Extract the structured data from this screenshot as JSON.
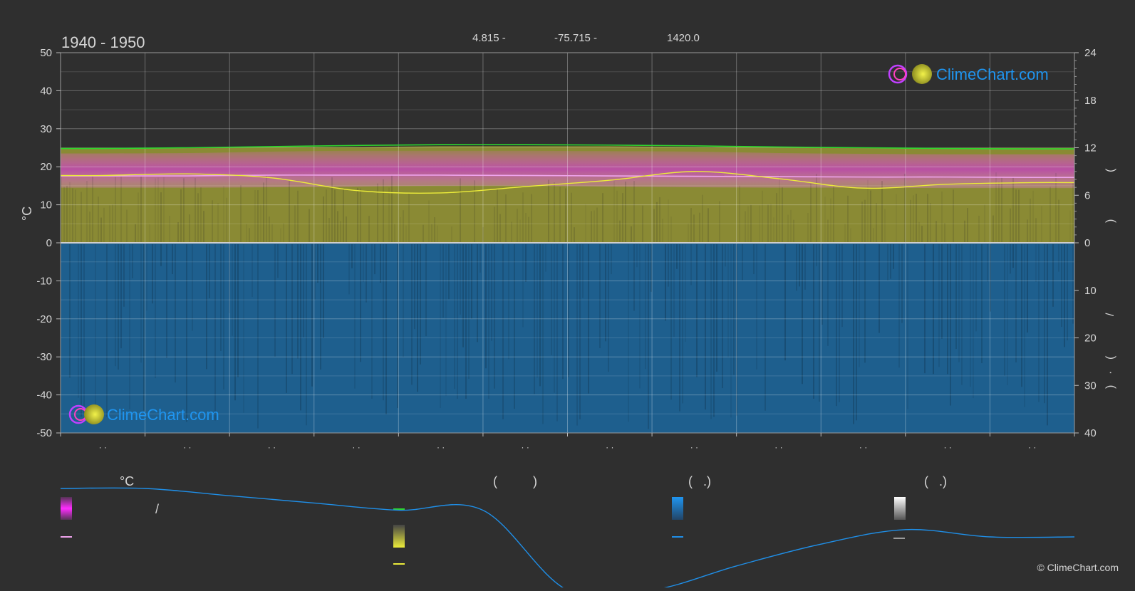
{
  "header": {
    "period": "1940 - 1950",
    "latitude": "4.815 -",
    "longitude": "-75.715 -",
    "elevation": "1420.0"
  },
  "brand": {
    "logo_text": "ClimeChart.com",
    "copyright": "© ClimeChart.com"
  },
  "colors": {
    "background": "#2f2f2f",
    "max_temp": "#2ed82e",
    "mean_temp": "#f0a4ee",
    "sunshine_line": "#ecec3a",
    "temp_band": "#c83cc8",
    "daylight_fill": "#8a8a34",
    "rain_fill": "#1e5f8e",
    "rain_line": "#1f8fe8",
    "logo_blue": "#1f95f0"
  },
  "chart_data": {
    "type": "area",
    "title": "1940 - 1950",
    "ylabel_left": "°C",
    "yticks_left": [
      "50",
      "40",
      "30",
      "20",
      "10",
      "0",
      "-10",
      "-20",
      "-30",
      "-40",
      "-50"
    ],
    "ylim_left": [
      -50,
      50
    ],
    "yticks_right_top": [
      "24",
      "18",
      "12",
      "6",
      "0"
    ],
    "ylim_right_top": [
      0,
      24
    ],
    "yticks_right_bottom": [
      "10",
      "20",
      "30",
      "40"
    ],
    "ylim_right_bottom": [
      0,
      40
    ],
    "right_axis_glyphs": [
      "(",
      ")",
      "/",
      "(",
      "·",
      ")"
    ],
    "x_tick_glyphs": [
      "· ·",
      "· ·",
      "· ·",
      "· ·",
      "· ·",
      "· ·",
      "· ·",
      "· ·",
      "· ·",
      "· ·",
      "· ·",
      "· ·"
    ],
    "x": [
      0,
      1,
      2,
      3,
      4,
      5,
      6,
      7,
      8,
      9,
      10,
      11
    ],
    "grid": true,
    "series": [
      {
        "key": "max_temp",
        "unit": "°C",
        "values": [
          24.8,
          25.0,
          25.3,
          25.6,
          25.8,
          25.8,
          25.7,
          25.5,
          25.2,
          25.0,
          24.8,
          24.7
        ]
      },
      {
        "key": "mean_temp",
        "unit": "°C",
        "values": [
          17.6,
          17.6,
          17.8,
          17.8,
          17.8,
          17.7,
          17.6,
          17.5,
          17.4,
          17.3,
          17.3,
          17.2
        ]
      },
      {
        "key": "min_band_low",
        "unit": "°C",
        "values": [
          14.5,
          14.5,
          14.6,
          14.8,
          15.0,
          15.0,
          14.8,
          14.6,
          14.5,
          14.5,
          14.4,
          14.4
        ]
      },
      {
        "key": "max_band_high",
        "unit": "°C",
        "values": [
          23.5,
          23.6,
          24.0,
          24.2,
          24.2,
          24.2,
          24.1,
          24.0,
          23.6,
          23.4,
          23.3,
          23.3
        ]
      },
      {
        "key": "sunshine",
        "unit": "h",
        "values": [
          8.5,
          8.7,
          8.2,
          6.6,
          6.3,
          7.1,
          7.9,
          9.0,
          8.1,
          6.9,
          7.4,
          7.6
        ]
      },
      {
        "key": "daylight",
        "unit": "h",
        "values": [
          12.0,
          12.0,
          12.1,
          12.1,
          12.2,
          12.2,
          12.2,
          12.1,
          12.1,
          12.0,
          12.0,
          12.0
        ]
      }
    ],
    "rain_fill_to": -50,
    "legend": {
      "col1_head": "°C",
      "col1_glyph": "/",
      "col2_head": "(          )",
      "col3_head": "(   .)",
      "col4_head": "(   .)",
      "col4_glyph": "—"
    },
    "legend_overlay_line": [
      -33,
      -33,
      -36,
      -39,
      -42,
      -42,
      -75,
      -75,
      -65,
      -56,
      -50,
      -53,
      -53
    ]
  }
}
